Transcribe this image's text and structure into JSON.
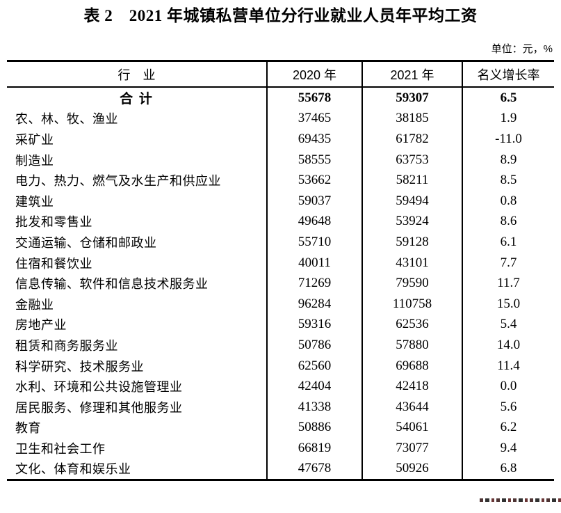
{
  "page": {
    "title": "表 2　2021 年城镇私营单位分行业就业人员年平均工资",
    "unit_note": "单位：元，%"
  },
  "table": {
    "columns": {
      "industry": "行　业",
      "y2020": "2020 年",
      "y2021": "2021 年",
      "growth": "名义增长率"
    },
    "rows": [
      {
        "label": "合 计",
        "y2020": "55678",
        "y2021": "59307",
        "growth": "6.5",
        "bold": true
      },
      {
        "label": "农、林、牧、渔业",
        "y2020": "37465",
        "y2021": "38185",
        "growth": "1.9",
        "bold": false
      },
      {
        "label": "采矿业",
        "y2020": "69435",
        "y2021": "61782",
        "growth": "-11.0",
        "bold": false
      },
      {
        "label": "制造业",
        "y2020": "58555",
        "y2021": "63753",
        "growth": "8.9",
        "bold": false
      },
      {
        "label": "电力、热力、燃气及水生产和供应业",
        "y2020": "53662",
        "y2021": "58211",
        "growth": "8.5",
        "bold": false
      },
      {
        "label": "建筑业",
        "y2020": "59037",
        "y2021": "59494",
        "growth": "0.8",
        "bold": false
      },
      {
        "label": "批发和零售业",
        "y2020": "49648",
        "y2021": "53924",
        "growth": "8.6",
        "bold": false
      },
      {
        "label": "交通运输、仓储和邮政业",
        "y2020": "55710",
        "y2021": "59128",
        "growth": "6.1",
        "bold": false
      },
      {
        "label": "住宿和餐饮业",
        "y2020": "40011",
        "y2021": "43101",
        "growth": "7.7",
        "bold": false
      },
      {
        "label": "信息传输、软件和信息技术服务业",
        "y2020": "71269",
        "y2021": "79590",
        "growth": "11.7",
        "bold": false
      },
      {
        "label": "金融业",
        "y2020": "96284",
        "y2021": "110758",
        "growth": "15.0",
        "bold": false
      },
      {
        "label": "房地产业",
        "y2020": "59316",
        "y2021": "62536",
        "growth": "5.4",
        "bold": false
      },
      {
        "label": "租赁和商务服务业",
        "y2020": "50786",
        "y2021": "57880",
        "growth": "14.0",
        "bold": false
      },
      {
        "label": "科学研究、技术服务业",
        "y2020": "62560",
        "y2021": "69688",
        "growth": "11.4",
        "bold": false
      },
      {
        "label": "水利、环境和公共设施管理业",
        "y2020": "42404",
        "y2021": "42418",
        "growth": "0.0",
        "bold": false
      },
      {
        "label": "居民服务、修理和其他服务业",
        "y2020": "41338",
        "y2021": "43644",
        "growth": "5.6",
        "bold": false
      },
      {
        "label": "教育",
        "y2020": "50886",
        "y2021": "54061",
        "growth": "6.2",
        "bold": false
      },
      {
        "label": "卫生和社会工作",
        "y2020": "66819",
        "y2021": "73077",
        "growth": "9.4",
        "bold": false
      },
      {
        "label": "文化、体育和娱乐业",
        "y2020": "47678",
        "y2021": "50926",
        "growth": "6.8",
        "bold": false
      }
    ]
  }
}
